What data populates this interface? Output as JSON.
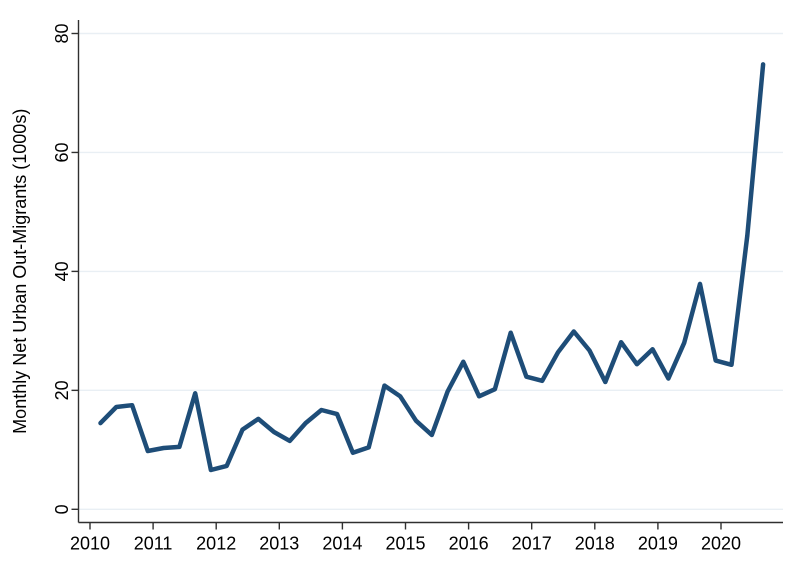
{
  "figure": {
    "background": "#ffffff"
  },
  "colors": {
    "line": "#1e4d78",
    "grid": "#e9eff4",
    "axis": "#303030",
    "text": "#000000"
  },
  "chart_data": {
    "type": "line",
    "title": "",
    "xlabel": "",
    "ylabel": "Monthly Net Urban Out-Migrants (1000s)",
    "ylim": [
      0,
      80
    ],
    "xlim": [
      2009.82,
      2020.98
    ],
    "grid": "horizontal-only",
    "legend_position": "none",
    "y_ticks": [
      0,
      20,
      40,
      60,
      80
    ],
    "y_tick_labels": [
      "0",
      "20",
      "40",
      "60",
      "80"
    ],
    "x_ticks": [
      2010,
      2011,
      2012,
      2013,
      2014,
      2015,
      2016,
      2017,
      2018,
      2019,
      2020
    ],
    "x_tick_labels": [
      "2010",
      "2011",
      "2012",
      "2013",
      "2014",
      "2015",
      "2016",
      "2017",
      "2018",
      "2019",
      "2020"
    ],
    "series": [
      {
        "name": "Monthly net urban out-migrants (1000s)",
        "color": "#1e4d78",
        "quarters": [
          "2010q1",
          "2010q2",
          "2010q3",
          "2010q4",
          "2011q1",
          "2011q2",
          "2011q3",
          "2011q4",
          "2012q1",
          "2012q2",
          "2012q3",
          "2012q4",
          "2013q1",
          "2013q2",
          "2013q3",
          "2013q4",
          "2014q1",
          "2014q2",
          "2014q3",
          "2014q4",
          "2015q1",
          "2015q2",
          "2015q3",
          "2015q4",
          "2016q1",
          "2016q2",
          "2016q3",
          "2016q4",
          "2017q1",
          "2017q2",
          "2017q3",
          "2017q4",
          "2018q1",
          "2018q2",
          "2018q3",
          "2018q4",
          "2019q1",
          "2019q2",
          "2019q3",
          "2019q4",
          "2020q1",
          "2020q2",
          "2020q3"
        ],
        "values": [
          14.5,
          17.2,
          17.5,
          9.8,
          10.3,
          10.5,
          19.5,
          6.6,
          7.3,
          13.4,
          15.2,
          13.0,
          11.5,
          14.5,
          16.7,
          16.0,
          9.5,
          10.4,
          20.8,
          19.0,
          14.9,
          12.5,
          19.8,
          24.8,
          19.0,
          20.2,
          29.7,
          22.3,
          21.6,
          26.4,
          29.9,
          26.7,
          21.4,
          28.1,
          24.4,
          26.9,
          22.0,
          28.0,
          37.9,
          25.0,
          24.3,
          46.0,
          74.8
        ]
      }
    ]
  }
}
